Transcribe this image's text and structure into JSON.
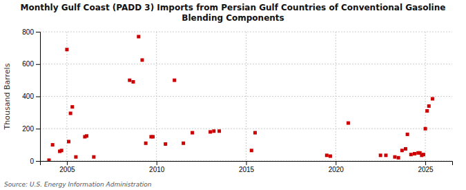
{
  "chart_data": {
    "type": "scatter",
    "title": "Monthly Gulf Coast (PADD 3) Imports from Persian Gulf Countries of Conventional Gasoline\nBlending Components",
    "ylabel": "Thousand Barrels",
    "source": "Source: U.S. Energy Information Administration",
    "color": "#cc0000",
    "marker": "square",
    "grid": true,
    "xlim": [
      2003.5,
      2026.5
    ],
    "ylim": [
      0,
      800
    ],
    "xticks": [
      2005,
      2010,
      2015,
      2020,
      2025
    ],
    "yticks": [
      0,
      200,
      400,
      600,
      800
    ],
    "x": [
      2004.0,
      2004.2,
      2004.6,
      2004.7,
      2005.0,
      2005.1,
      2005.2,
      2005.3,
      2005.5,
      2006.0,
      2006.1,
      2006.5,
      2008.5,
      2008.7,
      2009.0,
      2009.2,
      2009.4,
      2009.7,
      2009.8,
      2010.5,
      2011.0,
      2011.5,
      2012.0,
      2013.0,
      2013.2,
      2013.5,
      2015.3,
      2015.5,
      2019.5,
      2019.7,
      2020.7,
      2022.5,
      2022.8,
      2023.3,
      2023.5,
      2023.7,
      2023.9,
      2024.0,
      2024.2,
      2024.4,
      2024.6,
      2024.7,
      2024.8,
      2024.9,
      2025.0,
      2025.1,
      2025.2,
      2025.4
    ],
    "values": [
      5,
      100,
      60,
      65,
      690,
      120,
      295,
      335,
      25,
      150,
      155,
      25,
      500,
      490,
      770,
      625,
      110,
      150,
      150,
      105,
      500,
      110,
      175,
      180,
      185,
      185,
      65,
      175,
      35,
      30,
      235,
      35,
      35,
      25,
      20,
      65,
      75,
      165,
      40,
      45,
      50,
      50,
      35,
      40,
      200,
      310,
      340,
      385
    ]
  }
}
